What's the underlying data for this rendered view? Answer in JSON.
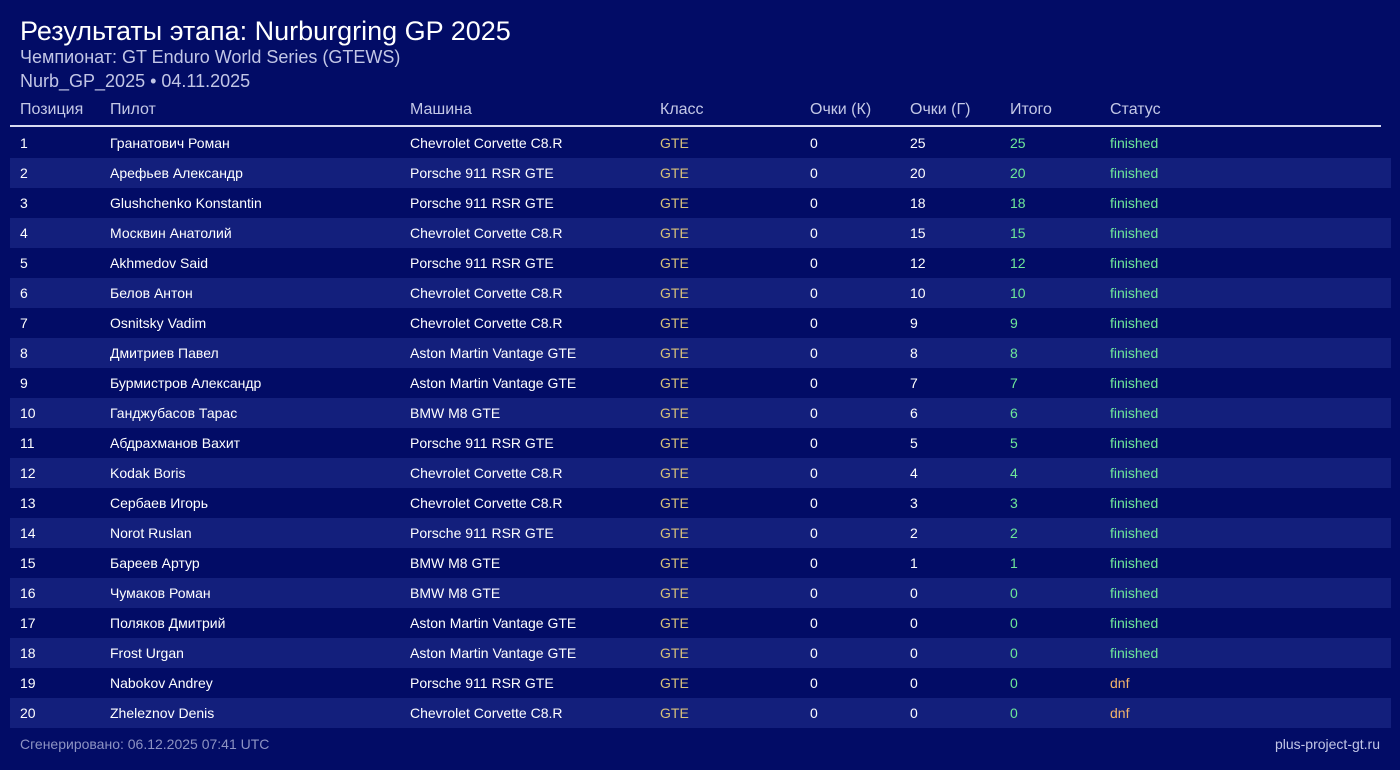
{
  "page": {
    "title": "Результаты этапа: Nurburgring GP 2025",
    "subtitle": "Чемпионат: GT Enduro World Series (GTEWS)",
    "meta": "Nurb_GP_2025 • 04.11.2025"
  },
  "table": {
    "headers": {
      "position": "Позиция",
      "driver": "Пилот",
      "car": "Машина",
      "class": "Класс",
      "points_q": "Очки (К)",
      "points_r": "Очки (Г)",
      "total": "Итого",
      "status": "Статус"
    },
    "rows": [
      {
        "position": "1",
        "driver": "Гранатович Роман",
        "car": "Chevrolet Corvette C8.R",
        "class": "GTE",
        "points_q": "0",
        "points_r": "25",
        "total": "25",
        "status": "finished"
      },
      {
        "position": "2",
        "driver": "Арефьев Александр",
        "car": "Porsche 911 RSR GTE",
        "class": "GTE",
        "points_q": "0",
        "points_r": "20",
        "total": "20",
        "status": "finished"
      },
      {
        "position": "3",
        "driver": "Glushchenko Konstantin",
        "car": "Porsche 911 RSR GTE",
        "class": "GTE",
        "points_q": "0",
        "points_r": "18",
        "total": "18",
        "status": "finished"
      },
      {
        "position": "4",
        "driver": "Москвин Анатолий",
        "car": "Chevrolet Corvette C8.R",
        "class": "GTE",
        "points_q": "0",
        "points_r": "15",
        "total": "15",
        "status": "finished"
      },
      {
        "position": "5",
        "driver": "Akhmedov Said",
        "car": "Porsche 911 RSR GTE",
        "class": "GTE",
        "points_q": "0",
        "points_r": "12",
        "total": "12",
        "status": "finished"
      },
      {
        "position": "6",
        "driver": "Белов Антон",
        "car": "Chevrolet Corvette C8.R",
        "class": "GTE",
        "points_q": "0",
        "points_r": "10",
        "total": "10",
        "status": "finished"
      },
      {
        "position": "7",
        "driver": "Osnitsky Vadim",
        "car": "Chevrolet Corvette C8.R",
        "class": "GTE",
        "points_q": "0",
        "points_r": "9",
        "total": "9",
        "status": "finished"
      },
      {
        "position": "8",
        "driver": "Дмитриев Павел",
        "car": "Aston Martin Vantage GTE",
        "class": "GTE",
        "points_q": "0",
        "points_r": "8",
        "total": "8",
        "status": "finished"
      },
      {
        "position": "9",
        "driver": "Бурмистров Александр",
        "car": "Aston Martin Vantage GTE",
        "class": "GTE",
        "points_q": "0",
        "points_r": "7",
        "total": "7",
        "status": "finished"
      },
      {
        "position": "10",
        "driver": "Ганджубасов Тарас",
        "car": "BMW M8 GTE",
        "class": "GTE",
        "points_q": "0",
        "points_r": "6",
        "total": "6",
        "status": "finished"
      },
      {
        "position": "11",
        "driver": "Абдрахманов Вахит",
        "car": "Porsche 911 RSR GTE",
        "class": "GTE",
        "points_q": "0",
        "points_r": "5",
        "total": "5",
        "status": "finished"
      },
      {
        "position": "12",
        "driver": "Kodak Boris",
        "car": "Chevrolet Corvette C8.R",
        "class": "GTE",
        "points_q": "0",
        "points_r": "4",
        "total": "4",
        "status": "finished"
      },
      {
        "position": "13",
        "driver": "Сербаев Игорь",
        "car": "Chevrolet Corvette C8.R",
        "class": "GTE",
        "points_q": "0",
        "points_r": "3",
        "total": "3",
        "status": "finished"
      },
      {
        "position": "14",
        "driver": "Norot Ruslan",
        "car": "Porsche 911 RSR GTE",
        "class": "GTE",
        "points_q": "0",
        "points_r": "2",
        "total": "2",
        "status": "finished"
      },
      {
        "position": "15",
        "driver": "Бареев Артур",
        "car": "BMW M8 GTE",
        "class": "GTE",
        "points_q": "0",
        "points_r": "1",
        "total": "1",
        "status": "finished"
      },
      {
        "position": "16",
        "driver": "Чумаков Роман",
        "car": "BMW M8 GTE",
        "class": "GTE",
        "points_q": "0",
        "points_r": "0",
        "total": "0",
        "status": "finished"
      },
      {
        "position": "17",
        "driver": "Поляков Дмитрий",
        "car": "Aston Martin Vantage GTE",
        "class": "GTE",
        "points_q": "0",
        "points_r": "0",
        "total": "0",
        "status": "finished"
      },
      {
        "position": "18",
        "driver": "Frost Urgan",
        "car": "Aston Martin Vantage GTE",
        "class": "GTE",
        "points_q": "0",
        "points_r": "0",
        "total": "0",
        "status": "finished"
      },
      {
        "position": "19",
        "driver": "Nabokov Andrey",
        "car": "Porsche 911 RSR GTE",
        "class": "GTE",
        "points_q": "0",
        "points_r": "0",
        "total": "0",
        "status": "dnf"
      },
      {
        "position": "20",
        "driver": "Zheleznov Denis",
        "car": "Chevrolet Corvette C8.R",
        "class": "GTE",
        "points_q": "0",
        "points_r": "0",
        "total": "0",
        "status": "dnf"
      }
    ]
  },
  "footer": {
    "generated": "Сгенерировано: 06.12.2025 07:41 UTC",
    "site": "plus-project-gt.ru"
  },
  "colors": {
    "background": "#020c66",
    "stripe": "#131f7c",
    "class_text": "#d8c27a",
    "finished": "#6ee89a",
    "dnf": "#f2b36b"
  }
}
